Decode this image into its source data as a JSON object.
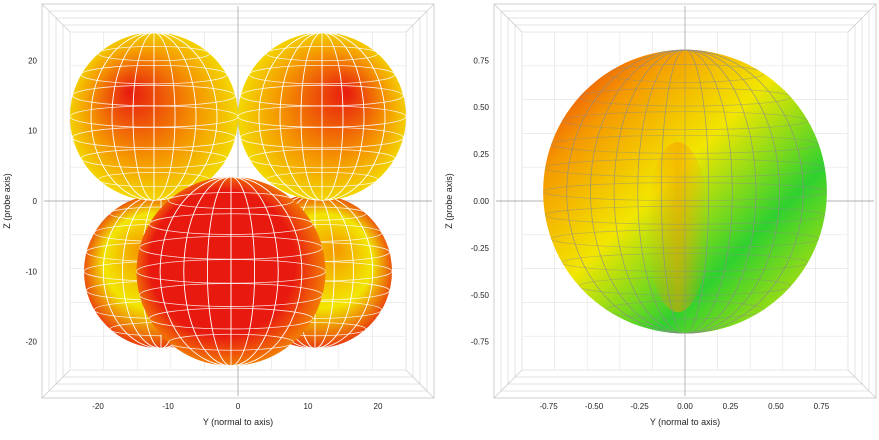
{
  "chart_data": [
    {
      "type": "3d-surface",
      "view": "front orthographic (Y-Z plane)",
      "xlabel": "Y (normal to axis)",
      "ylabel": "Z (probe axis)",
      "xticks": [
        -20,
        -10,
        0,
        10,
        20
      ],
      "yticks": [
        20,
        10,
        0,
        -10,
        -20
      ],
      "xlim": [
        -28,
        28
      ],
      "ylim": [
        -28,
        28
      ],
      "grid": true,
      "surface": {
        "shape": "four overlapping lobes (quadrupole-like)",
        "lobes": [
          {
            "position": "upper-left",
            "center": [
              -12,
              12
            ],
            "radius": 12,
            "color": "red-orange"
          },
          {
            "position": "upper-right",
            "center": [
              12,
              12
            ],
            "radius": 12,
            "color": "red-orange"
          },
          {
            "position": "lower-left",
            "center": [
              -11,
              -10
            ],
            "radius": 11,
            "color": "orange-yellow"
          },
          {
            "position": "lower-right",
            "center": [
              11,
              -10
            ],
            "radius": 11,
            "color": "orange-yellow"
          },
          {
            "position": "front-center",
            "center": [
              -1,
              -10
            ],
            "radius": 13.5,
            "color": "red"
          }
        ],
        "colormap": [
          "#2fd12f",
          "#f2e600",
          "#f59a00",
          "#e81a10"
        ]
      }
    },
    {
      "type": "3d-surface",
      "view": "front orthographic (Y-Z plane)",
      "xlabel": "Y (normal to axis)",
      "ylabel": "Z (probe axis)",
      "xticks": [
        "-0.75",
        "-0.50",
        "-0.25",
        "0.00",
        "0.25",
        "0.50",
        "0.75"
      ],
      "yticks": [
        "0.75",
        "0.50",
        "0.25",
        "0.00",
        "-0.25",
        "-0.50",
        "-0.75"
      ],
      "xlim": [
        -1.05,
        1.05
      ],
      "ylim": [
        -1.05,
        1.05
      ],
      "grid": true,
      "surface": {
        "shape": "near-spherical blob",
        "center": [
          0.0,
          0.05
        ],
        "radius": 0.78,
        "color": "mostly yellow-green with orange top-left and orange center stripe",
        "colormap": [
          "#2fd12f",
          "#f2e600",
          "#f59a00",
          "#e81a10"
        ]
      }
    }
  ]
}
